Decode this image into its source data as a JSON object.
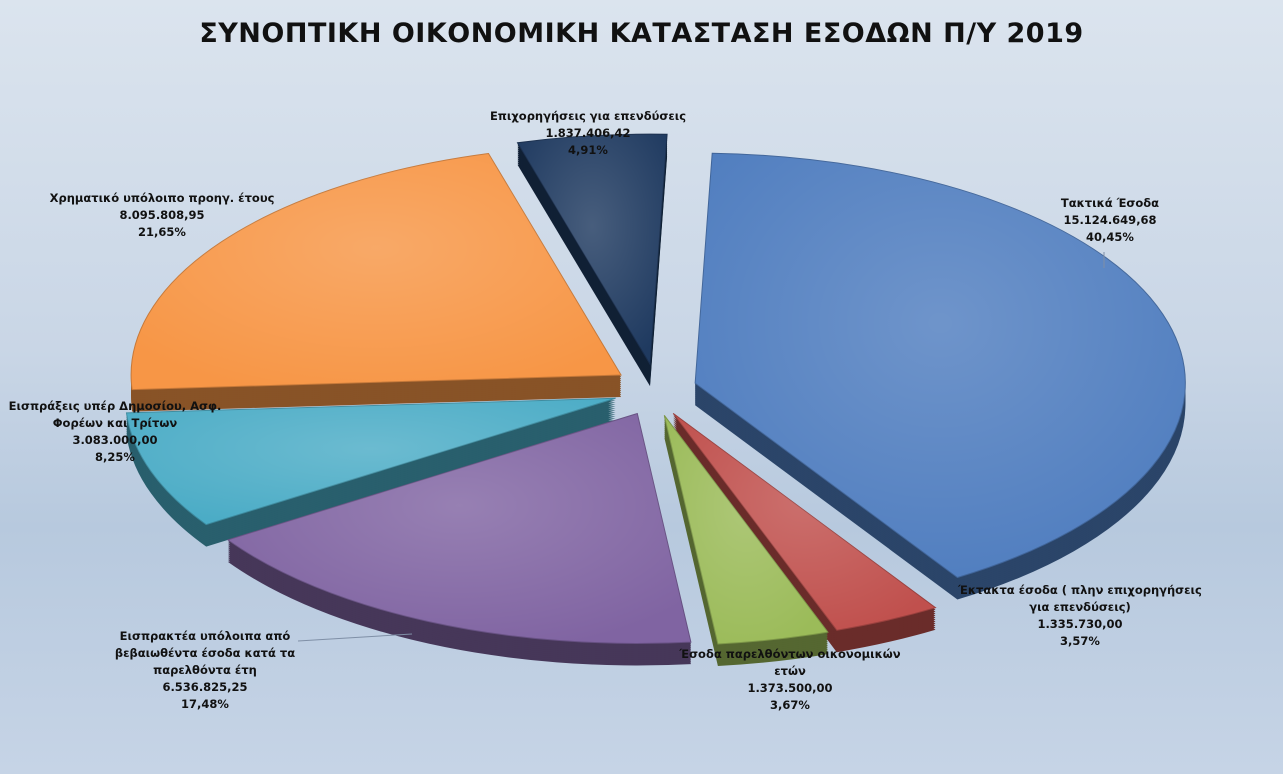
{
  "chart_data": {
    "type": "pie",
    "title": "ΣΥΝΟΠΤΙΚΗ ΟΙΚΟΝΟΜΙΚΗ ΚΑΤΑΣΤΑΣΗ ΕΣΟΔΩΝ Π/Υ 2019",
    "slices": [
      {
        "name": "Τακτικά Έσοδα",
        "name_lines": [
          "Τακτικά Έσοδα"
        ],
        "value": 15124649.68,
        "value_label": "15.124.649,68",
        "percent_label": "40,45%",
        "color": "#4f7dbf"
      },
      {
        "name": "Έκτακτα έσοδα ( πλην επιχορηγήσεις για επενδύσεις)",
        "name_lines": [
          "Έκτακτα έσοδα ( πλην επιχορηγήσεις",
          "για επενδύσεις)"
        ],
        "value": 1335730.0,
        "value_label": "1.335.730,00",
        "percent_label": "3,57%",
        "color": "#c0504d"
      },
      {
        "name": "Έσοδα παρελθόντων οικονομικών ετών",
        "name_lines": [
          "Έσοδα παρελθόντων  οικονομικών",
          "ετών"
        ],
        "value": 1373500.0,
        "value_label": "1.373.500,00",
        "percent_label": "3,67%",
        "color": "#9bbb59"
      },
      {
        "name": "Εισπρακτέα υπόλοιπα από βεβαιωθέντα έσοδα κατά τα παρελθόντα έτη",
        "name_lines": [
          "Εισπρακτέα υπόλοιπα από",
          "βεβαιωθέντα έσοδα κατά τα",
          "παρελθόντα έτη"
        ],
        "value": 6536825.25,
        "value_label": "6.536.825,25",
        "percent_label": "17,48%",
        "color": "#8064a2"
      },
      {
        "name": "Εισπράξεις υπέρ Δημοσίου, Ασφ. Φορέων και Τρίτων",
        "name_lines": [
          "Εισπράξεις υπέρ Δημοσίου,  Ασφ.",
          "Φορέων και Τρίτων"
        ],
        "value": 3083000.0,
        "value_label": "3.083.000,00",
        "percent_label": "8,25%",
        "color": "#4bacc6"
      },
      {
        "name": "Χρηματικό υπόλοιπο προηγ. έτους",
        "name_lines": [
          "Χρηματικό υπόλοιπο προηγ.  έτους"
        ],
        "value": 8095808.95,
        "value_label": "8.095.808,95",
        "percent_label": "21,65%",
        "color": "#f79646"
      },
      {
        "name": "Επιχορηγήσεις για επενδύσεις",
        "name_lines": [
          "Επιχορηγήσεις για επενδύσεις"
        ],
        "value": 1837406.42,
        "value_label": "1.837.406,42",
        "percent_label": "4,91%",
        "color": "#1f3a60"
      }
    ],
    "legend": "none",
    "grid": false
  }
}
